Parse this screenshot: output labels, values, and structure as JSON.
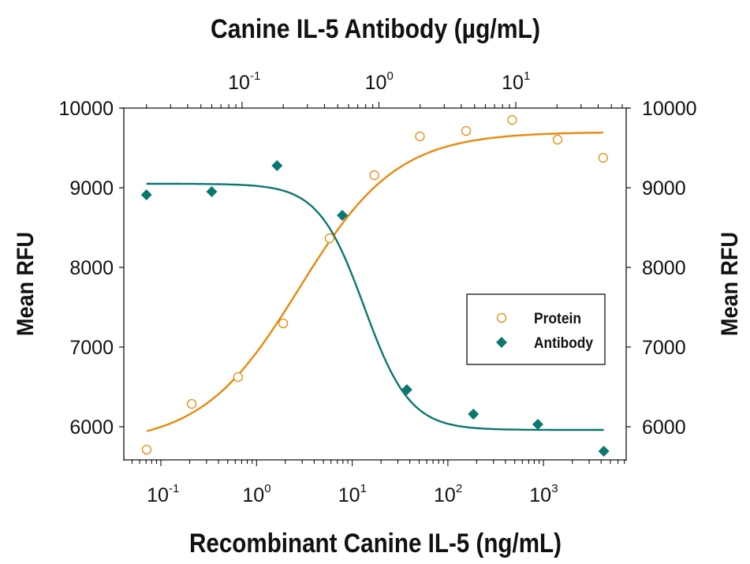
{
  "chart_data": {
    "type": "scatter",
    "title": "Canine IL-5 Antibody (µg/mL)",
    "xlabel": "Recombinant Canine IL-5 (ng/mL)",
    "x2label": "Canine IL-5 Antibody (µg/mL)",
    "ylabel": "Mean RFU",
    "y2label": "Mean RFU",
    "xscale": "log",
    "x2scale": "log",
    "xlim": [
      0.052,
      8700
    ],
    "x2lim": [
      0.0137,
      65
    ],
    "ylim": [
      5580,
      10000
    ],
    "x_ticks": [
      "10^-1",
      "10^0",
      "10^1",
      "10^2",
      "10^3"
    ],
    "x2_ticks": [
      "10^-1",
      "10^0",
      "10^1"
    ],
    "y_ticks": [
      6000,
      7000,
      8000,
      9000,
      10000
    ],
    "grid": false,
    "legend_position": "center-right inside",
    "series": [
      {
        "name": "Protein",
        "axis": "bottom",
        "marker": "open-circle",
        "color": "#E8890C",
        "x": [
          0.071,
          0.21,
          0.64,
          1.9,
          5.8,
          17,
          51,
          155,
          470,
          1400,
          4200
        ],
        "y": [
          5713,
          6287,
          6624,
          7297,
          8366,
          9158,
          9644,
          9713,
          9851,
          9604,
          9376
        ],
        "fit": {
          "model": "4PL",
          "bottom": 5780,
          "top": 9700,
          "ec50": 2.8,
          "hill": 0.85
        }
      },
      {
        "name": "Antibody",
        "axis": "top",
        "marker": "filled-diamond",
        "color": "#0B7770",
        "x": [
          0.02,
          0.06,
          0.18,
          0.54,
          1.6,
          4.9,
          14.5,
          44
        ],
        "y": [
          8911,
          8950,
          9277,
          8653,
          6465,
          6158,
          6030,
          5693
        ],
        "fit": {
          "model": "4PL",
          "bottom": 5960,
          "top": 9050,
          "ec50": 0.78,
          "hill": 2.6
        }
      }
    ]
  },
  "labels": {
    "top_title": "Canine IL-5 Antibody (µg/mL)",
    "bottom_title": "Recombinant Canine IL-5 (ng/mL)",
    "left_ylabel": "Mean RFU",
    "right_ylabel": "Mean RFU",
    "legend_protein": "Protein",
    "legend_antibody": "Antibody"
  },
  "ticks": {
    "y": [
      "6000",
      "7000",
      "8000",
      "9000",
      "10000"
    ],
    "bottom_base": "10",
    "bottom_exp": [
      "-1",
      "0",
      "1",
      "2",
      "3"
    ],
    "top_base": "10",
    "top_exp": [
      "-1",
      "0",
      "1"
    ]
  },
  "colors": {
    "protein": "#E8890C",
    "antibody": "#0B7770",
    "axis": "#111111"
  }
}
